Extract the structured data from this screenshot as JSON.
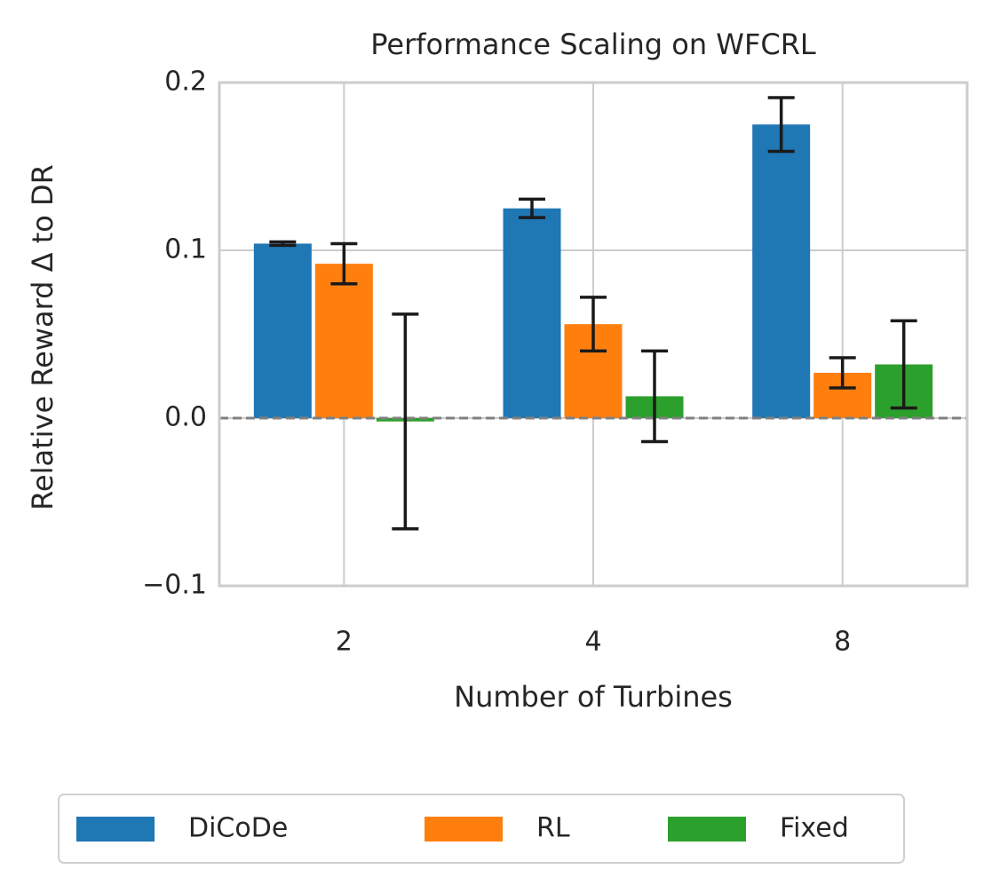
{
  "chart_data": {
    "type": "bar",
    "title": "Performance Scaling on WFCRL",
    "x_label": "Number of Turbines",
    "y_label": "Relative Reward Δ to DR",
    "categories": [
      "2",
      "4",
      "8"
    ],
    "series": [
      {
        "name": "DiCoDe",
        "color": "#1f77b4",
        "values": [
          0.104,
          0.125,
          0.175
        ],
        "errors": [
          0.001,
          0.0055,
          0.016
        ]
      },
      {
        "name": "RL",
        "color": "#ff7f0e",
        "values": [
          0.092,
          0.056,
          0.027
        ],
        "errors": [
          0.012,
          0.016,
          0.009
        ]
      },
      {
        "name": "Fixed",
        "color": "#2ca02c",
        "values": [
          -0.002,
          0.013,
          0.032
        ],
        "errors": [
          0.064,
          0.027,
          0.026
        ]
      }
    ],
    "ylim": [
      -0.1,
      0.2
    ],
    "yticks": [
      {
        "value": -0.1,
        "label": "−0.1"
      },
      {
        "value": 0,
        "label": "0.0"
      },
      0.1,
      0.2
    ],
    "reference_line": 0,
    "grid": true,
    "legend": "bottom"
  }
}
